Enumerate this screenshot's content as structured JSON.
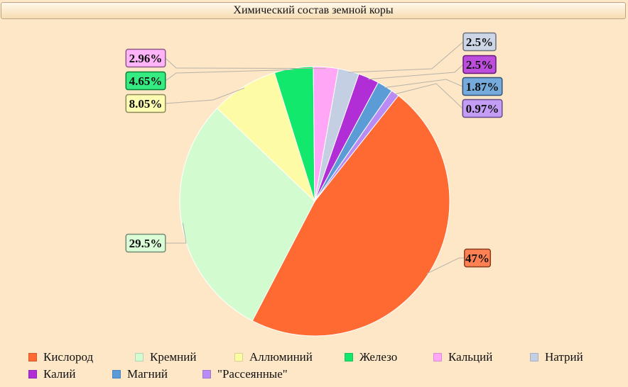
{
  "chart_data": {
    "type": "pie",
    "title": "Химический состав земной коры",
    "slices": [
      {
        "name": "Кислород",
        "value": 47,
        "label": "47%",
        "color": "#ff6a33"
      },
      {
        "name": "Кремний",
        "value": 29.5,
        "label": "29.5%",
        "color": "#d3fbd0"
      },
      {
        "name": "Аллюминий",
        "value": 8.05,
        "label": "8.05%",
        "color": "#fdfba6"
      },
      {
        "name": "Железо",
        "value": 4.65,
        "label": "4.65%",
        "color": "#12e86b"
      },
      {
        "name": "Кальций",
        "value": 2.96,
        "label": "2.96%",
        "color": "#ffa6f7"
      },
      {
        "name": "Натрий",
        "value": 2.5,
        "label": "2.5%",
        "color": "#c4cfe3"
      },
      {
        "name": "Калий",
        "value": 2.5,
        "label": "2.5%",
        "color": "#b12ed6"
      },
      {
        "name": "Магний",
        "value": 1.87,
        "label": "1.87%",
        "color": "#5b9bd6"
      },
      {
        "name": "\"Рассеянные\"",
        "value": 0.97,
        "label": "0.97%",
        "color": "#b98cf5"
      }
    ],
    "legend_placement": "bottom"
  }
}
